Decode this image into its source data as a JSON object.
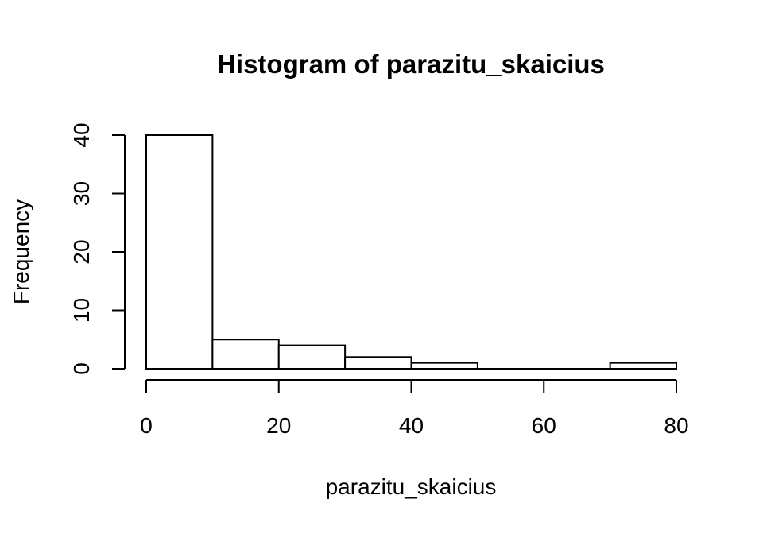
{
  "chart_data": {
    "type": "bar",
    "title": "Histogram of parazitu_skaicius",
    "xlabel": "parazitu_skaicius",
    "ylabel": "Frequency",
    "bins": [
      {
        "start": 0,
        "end": 10,
        "count": 40
      },
      {
        "start": 10,
        "end": 20,
        "count": 5
      },
      {
        "start": 20,
        "end": 30,
        "count": 4
      },
      {
        "start": 30,
        "end": 40,
        "count": 2
      },
      {
        "start": 40,
        "end": 50,
        "count": 1
      },
      {
        "start": 50,
        "end": 60,
        "count": 0
      },
      {
        "start": 60,
        "end": 70,
        "count": 0
      },
      {
        "start": 70,
        "end": 80,
        "count": 1
      }
    ],
    "xlim": [
      0,
      80
    ],
    "ylim": [
      0,
      40
    ],
    "x_ticks": [
      0,
      20,
      40,
      60,
      80
    ],
    "y_ticks": [
      0,
      10,
      20,
      30,
      40
    ],
    "grid": false
  }
}
